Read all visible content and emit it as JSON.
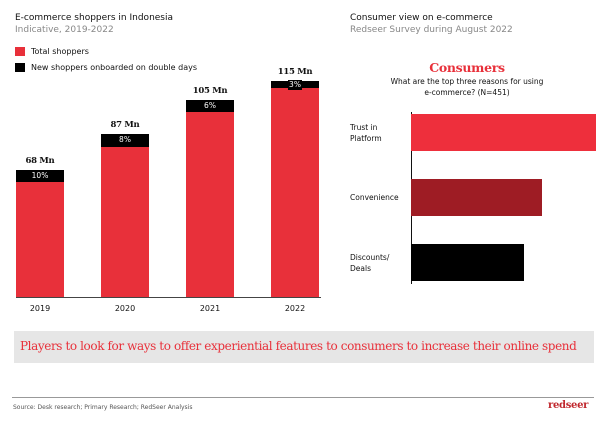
{
  "left_panel": {
    "title": "E-commerce shoppers in Indonesia",
    "subtitle": "Indicative, 2019-2022"
  },
  "right_panel": {
    "title": "Consumer view on e-commerce",
    "subtitle": "Redseer Survey during August 2022",
    "heading": "Consumers",
    "question_line1": "What are the top three reasons for using",
    "question_line2": "e-commerce? (N=451)"
  },
  "colors": {
    "total_shoppers": "#e8303a",
    "new_shoppers": "#000000",
    "trust": "#ee2f3c",
    "convenience": "#9e1c24",
    "discounts": "#000000",
    "banner_bg": "#e6e6e6",
    "accent": "#e8303a"
  },
  "chart_data": [
    {
      "type": "bar",
      "stacked": true,
      "title": "E-commerce shoppers in Indonesia",
      "subtitle": "Indicative, 2019-2022",
      "categories": [
        "2019",
        "2020",
        "2021",
        "2022"
      ],
      "totals": [
        68,
        87,
        105,
        115
      ],
      "total_labels": [
        "68 Mn",
        "87 Mn",
        "105 Mn",
        "115 Mn"
      ],
      "series": [
        {
          "name": "Total shoppers",
          "share_of_total_pct": [
            90,
            92,
            94,
            97
          ]
        },
        {
          "name": "New shoppers onboarded on double days",
          "share_of_total_pct": [
            10,
            8,
            6,
            3
          ]
        }
      ],
      "segment_labels": [
        "10%",
        "8%",
        "6%",
        "3%"
      ],
      "unit": "Mn",
      "xlabel": "",
      "ylabel": "",
      "ylim": [
        0,
        120
      ],
      "grid": false,
      "legend": "top-left"
    },
    {
      "type": "bar",
      "orientation": "horizontal",
      "title": "Consumers",
      "subtitle": "What are the top three reasons for using e-commerce? (N=451)",
      "categories": [
        "Trust in Platform",
        "Convenience",
        "Discounts/ Deals"
      ],
      "category_lines": [
        [
          "Trust in",
          "Platform"
        ],
        [
          "Convenience"
        ],
        [
          "Discounts/",
          "Deals"
        ]
      ],
      "values_relative": [
        100,
        71,
        61
      ],
      "xlim": [
        0,
        100
      ],
      "value_labels_shown": false,
      "grid": false
    }
  ],
  "banner": {
    "text": "Players to look for ways to offer experiential features to consumers to increase their online spend"
  },
  "footer": {
    "source": "Source: Desk research; Primary Research; RedSeer Analysis",
    "logo": "redseer"
  }
}
